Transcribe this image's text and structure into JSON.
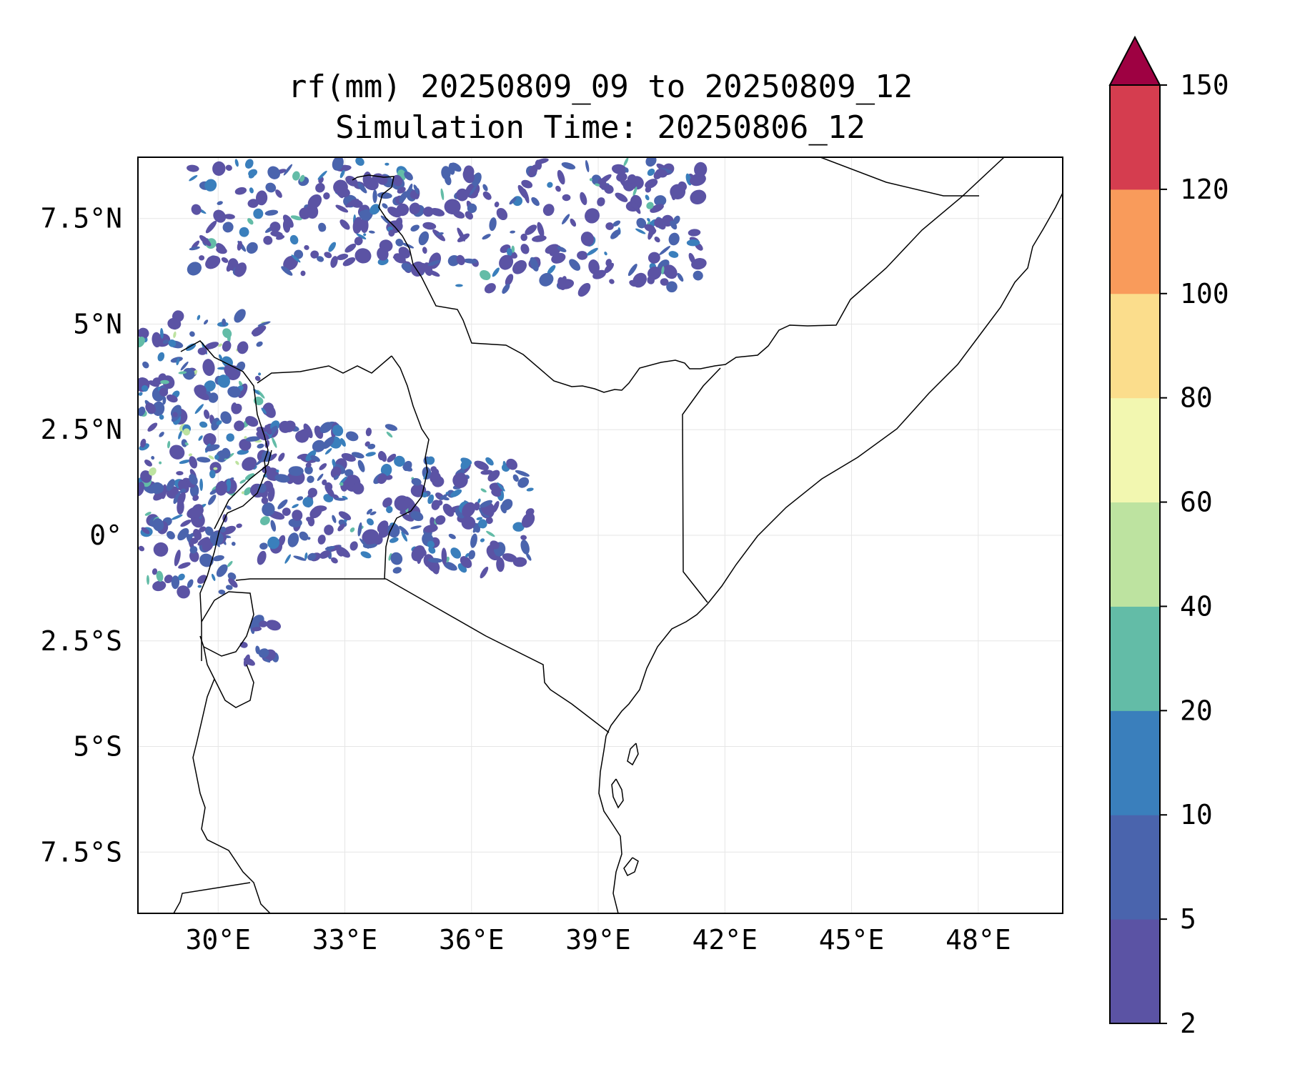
{
  "title": {
    "line1": "rf(mm) 20250809_09 to 20250809_12",
    "line2": "Simulation Time: 20250806_12"
  },
  "map": {
    "lon_range": [
      28.1,
      50.0
    ],
    "lat_range": [
      -8.95,
      8.95
    ],
    "lon_ticks": [
      {
        "value": 30,
        "label": "30°E"
      },
      {
        "value": 33,
        "label": "33°E"
      },
      {
        "value": 36,
        "label": "36°E"
      },
      {
        "value": 39,
        "label": "39°E"
      },
      {
        "value": 42,
        "label": "42°E"
      },
      {
        "value": 45,
        "label": "45°E"
      },
      {
        "value": 48,
        "label": "48°E"
      }
    ],
    "lat_ticks": [
      {
        "value": 7.5,
        "label": "7.5°N"
      },
      {
        "value": 5,
        "label": "5°N"
      },
      {
        "value": 2.5,
        "label": "2.5°N"
      },
      {
        "value": 0,
        "label": "0°"
      },
      {
        "value": -2.5,
        "label": "2.5°S"
      },
      {
        "value": -5,
        "label": "5°S"
      },
      {
        "value": -7.5,
        "label": "7.5°S"
      }
    ],
    "gridlines": true,
    "coastline_color": "#000000"
  },
  "colorbar": {
    "levels": [
      "2",
      "5",
      "10",
      "20",
      "40",
      "60",
      "80",
      "100",
      "120",
      "150"
    ],
    "colors": [
      "#5b53a4",
      "#4a64ad",
      "#3a7fbc",
      "#63bca7",
      "#bde3a0",
      "#f2f7b0",
      "#fbdd8c",
      "#f99b5b",
      "#d53d4f"
    ],
    "extend_color": "#9e0142",
    "extend": "max"
  },
  "chart_data": {
    "type": "heatmap",
    "variable": "rf(mm)",
    "levels": [
      2,
      5,
      10,
      20,
      40,
      60,
      80,
      100,
      120,
      150
    ],
    "rain_regions": [
      {
        "region": "South Sudan / Ethiopia border, north of 6°N",
        "dominant_range_mm": "2-20"
      },
      {
        "region": "Ethiopian highlands, 36°E-41°E, 6°N-9°N",
        "dominant_range_mm": "2-20"
      },
      {
        "region": "NE DR Congo / W Uganda, 28°E-31°E, -1.5°N-4°N",
        "dominant_range_mm": "2-60"
      },
      {
        "region": "Central Uganda, 31°E-34°E, -1°N-2.5°N",
        "dominant_range_mm": "2-20"
      },
      {
        "region": "Western Kenya, 34°E-37.5°E, -1°N-1.8°N",
        "dominant_range_mm": "2-40"
      }
    ]
  }
}
